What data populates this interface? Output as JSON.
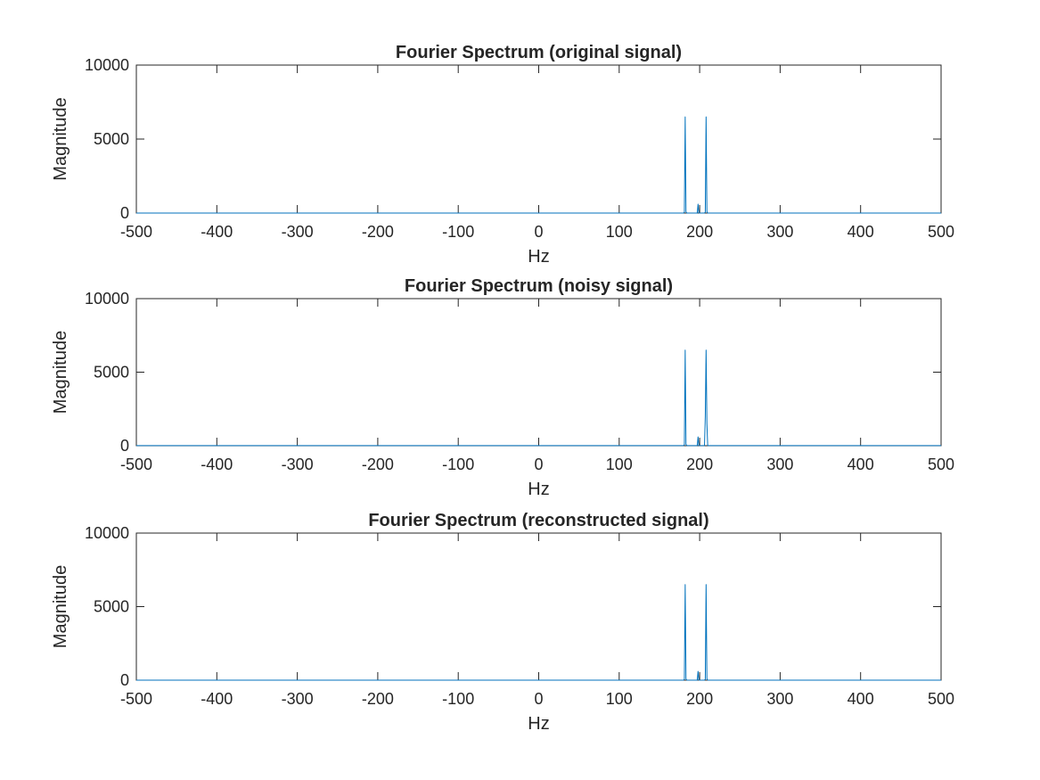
{
  "chart_data": [
    {
      "type": "line",
      "title": "Fourier Spectrum (original signal)",
      "xlabel": "Hz",
      "ylabel": "Magnitude",
      "xlim": [
        -500,
        500
      ],
      "ylim": [
        0,
        10000
      ],
      "xticks": [
        "-500",
        "-400",
        "-300",
        "-200",
        "-100",
        "0",
        "100",
        "200",
        "300",
        "400",
        "500"
      ],
      "yticks": [
        "0",
        "5000",
        "10000"
      ],
      "series": [
        {
          "color": "#0072BD",
          "x": [
            -500,
            180,
            181,
            182,
            183,
            184,
            197,
            198,
            199,
            206,
            207,
            208,
            209,
            210,
            500
          ],
          "y": [
            2,
            2,
            60,
            6500,
            90,
            2,
            2,
            600,
            2,
            2,
            60,
            6500,
            90,
            2,
            2
          ]
        }
      ]
    },
    {
      "type": "line",
      "title": "Fourier Spectrum (noisy signal)",
      "xlabel": "Hz",
      "ylabel": "Magnitude",
      "xlim": [
        -500,
        500
      ],
      "ylim": [
        0,
        10000
      ],
      "xticks": [
        "-500",
        "-400",
        "-300",
        "-200",
        "-100",
        "0",
        "100",
        "200",
        "300",
        "400",
        "500"
      ],
      "yticks": [
        "0",
        "5000",
        "10000"
      ],
      "series": [
        {
          "color": "#0072BD",
          "x": [
            -500,
            180,
            181,
            182,
            183,
            184,
            197,
            198,
            199,
            206,
            207,
            208,
            209,
            210,
            500
          ],
          "y": [
            8,
            8,
            70,
            6500,
            100,
            8,
            8,
            600,
            8,
            8,
            2000,
            6500,
            1500,
            8,
            8
          ]
        }
      ]
    },
    {
      "type": "line",
      "title": "Fourier Spectrum (reconstructed signal)",
      "xlabel": "Hz",
      "ylabel": "Magnitude",
      "xlim": [
        -500,
        500
      ],
      "ylim": [
        0,
        10000
      ],
      "xticks": [
        "-500",
        "-400",
        "-300",
        "-200",
        "-100",
        "0",
        "100",
        "200",
        "300",
        "400",
        "500"
      ],
      "yticks": [
        "0",
        "5000",
        "10000"
      ],
      "series": [
        {
          "color": "#0072BD",
          "x": [
            -500,
            180,
            181,
            182,
            183,
            184,
            197,
            198,
            199,
            206,
            207,
            208,
            209,
            210,
            500
          ],
          "y": [
            2,
            2,
            60,
            6500,
            90,
            2,
            2,
            600,
            2,
            2,
            60,
            6500,
            90,
            2,
            2
          ]
        }
      ]
    }
  ]
}
